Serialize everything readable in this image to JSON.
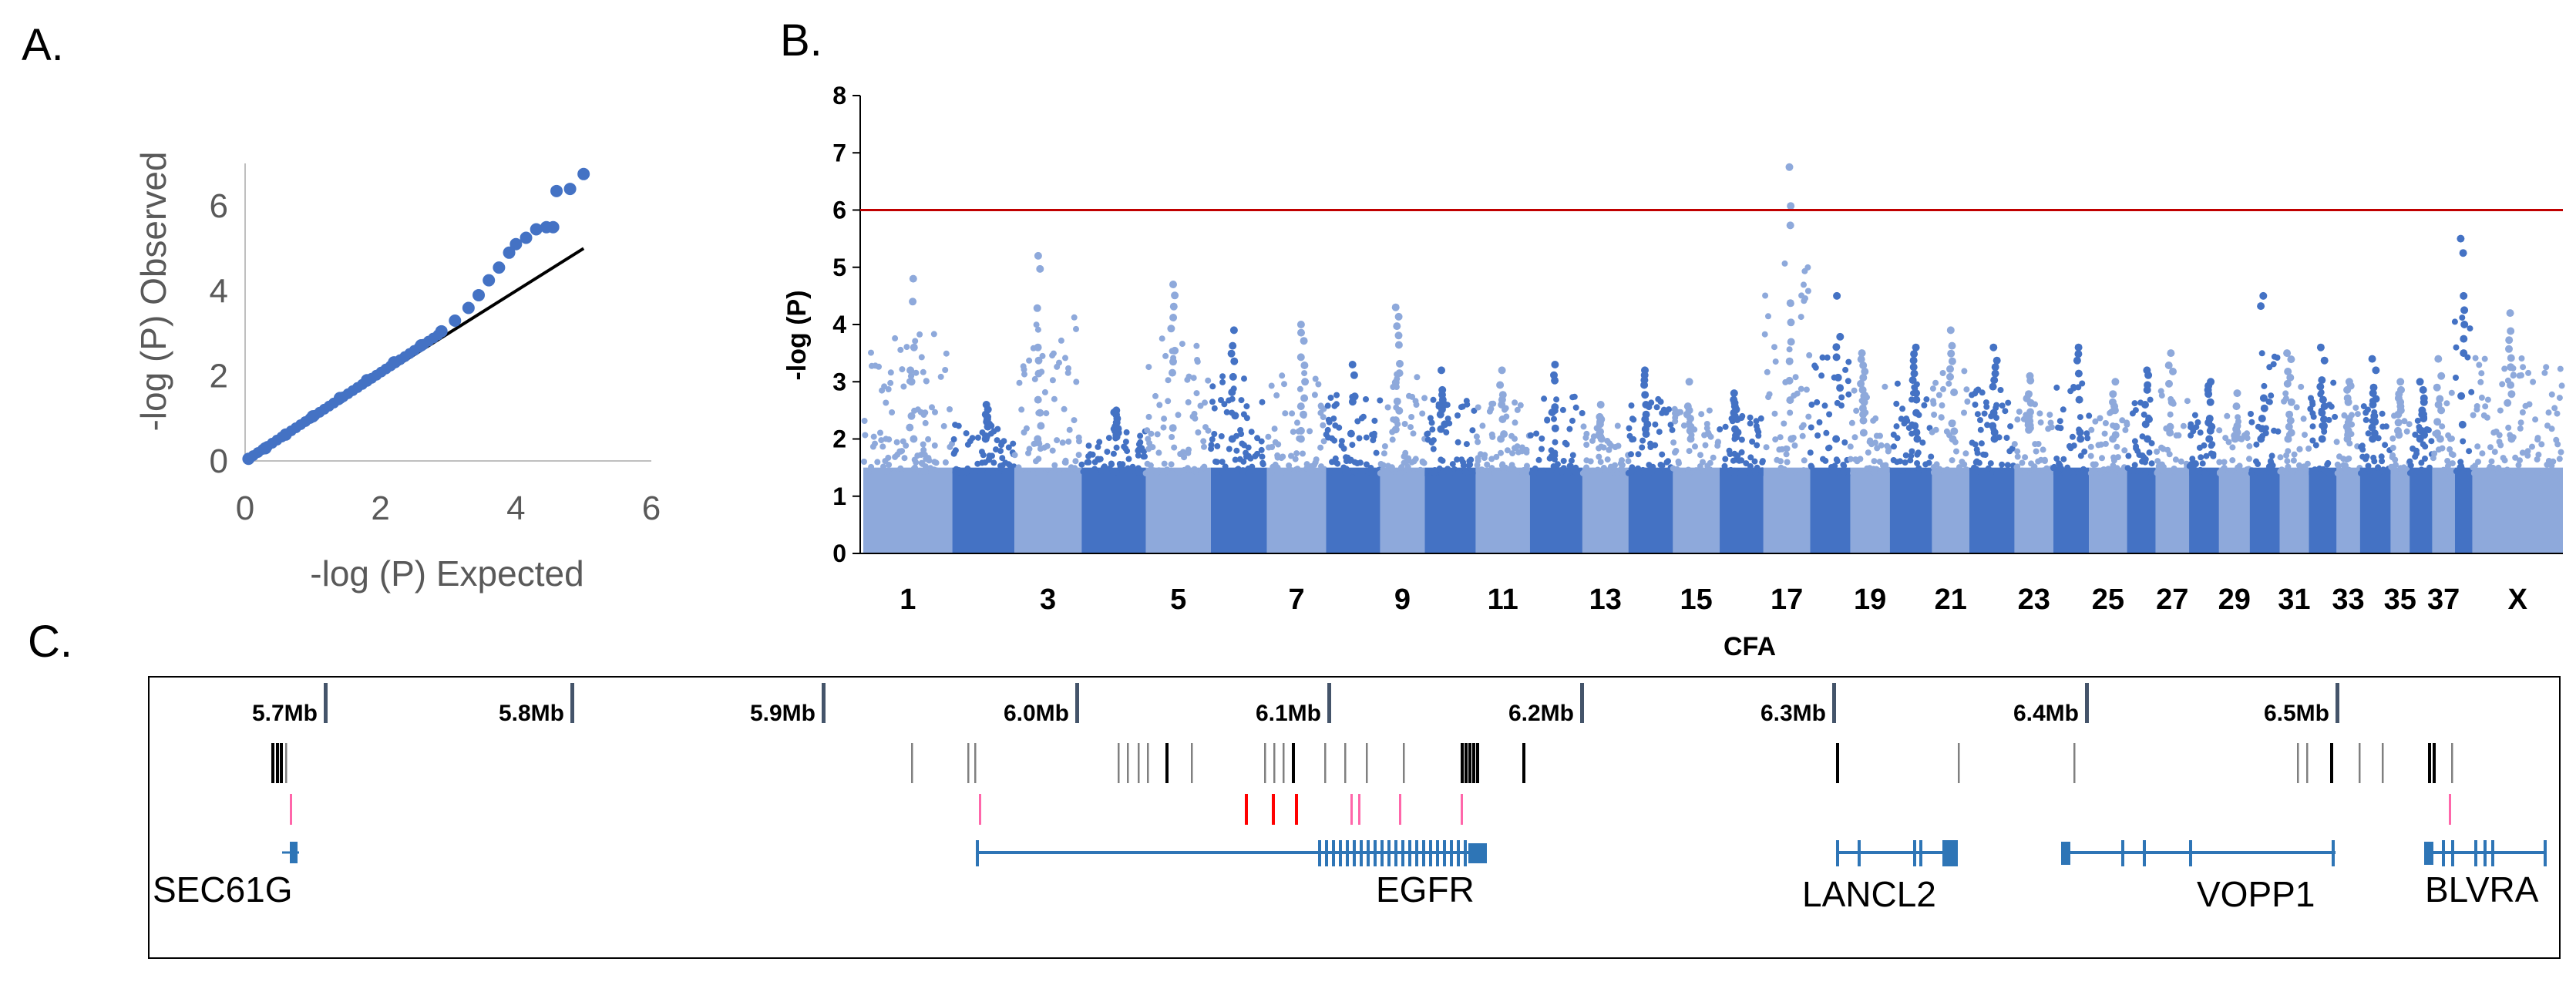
{
  "panel_labels": {
    "a": "A.",
    "b": "B.",
    "c": "C."
  },
  "colors": {
    "qq_point": "#4472C4",
    "qq_line": "#000000",
    "chr_light": "#8EA9DB",
    "chr_dark": "#4472C4",
    "threshold": "#C00000",
    "gene": "#2E75B6",
    "snp_black": "#000000",
    "snp_gray": "#808080",
    "snp_pink": "#FF66AA",
    "snp_red": "#FF0000"
  },
  "chart_data": [
    {
      "id": "qq",
      "type": "scatter",
      "title": "",
      "xlabel": "-log (P) Expected",
      "ylabel": "-log (P) Observed",
      "xlim": [
        0,
        6
      ],
      "ylim": [
        0,
        7
      ],
      "xticks": [
        "0",
        "2",
        "4",
        "6"
      ],
      "yticks": [
        "0",
        "2",
        "4",
        "6"
      ],
      "reference_line": [
        [
          0,
          0
        ],
        [
          5,
          5
        ]
      ],
      "points": [
        [
          0.05,
          0.05
        ],
        [
          0.3,
          0.3
        ],
        [
          0.6,
          0.62
        ],
        [
          1.0,
          1.05
        ],
        [
          1.4,
          1.48
        ],
        [
          1.8,
          1.9
        ],
        [
          2.2,
          2.32
        ],
        [
          2.6,
          2.72
        ],
        [
          2.9,
          3.05
        ],
        [
          3.1,
          3.3
        ],
        [
          3.3,
          3.6
        ],
        [
          3.45,
          3.9
        ],
        [
          3.6,
          4.25
        ],
        [
          3.75,
          4.55
        ],
        [
          3.9,
          4.9
        ],
        [
          4.0,
          5.1
        ],
        [
          4.15,
          5.25
        ],
        [
          4.3,
          5.45
        ],
        [
          4.45,
          5.5
        ],
        [
          4.55,
          5.5
        ],
        [
          4.6,
          6.35
        ],
        [
          4.8,
          6.4
        ],
        [
          5.0,
          6.75
        ]
      ]
    },
    {
      "id": "manhattan",
      "type": "scatter",
      "title": "",
      "xlabel": "CFA",
      "ylabel": "-log (P)",
      "ylim": [
        0,
        8
      ],
      "yticks": [
        "0",
        "1",
        "2",
        "3",
        "4",
        "5",
        "6",
        "7",
        "8"
      ],
      "threshold": 6.0,
      "chromosomes": [
        "1",
        "2",
        "3",
        "4",
        "5",
        "6",
        "7",
        "8",
        "9",
        "10",
        "11",
        "12",
        "13",
        "14",
        "15",
        "16",
        "17",
        "18",
        "19",
        "20",
        "21",
        "22",
        "23",
        "24",
        "25",
        "26",
        "27",
        "28",
        "29",
        "30",
        "31",
        "32",
        "33",
        "34",
        "35",
        "36",
        "37",
        "38",
        "X"
      ],
      "xtick_labels": [
        "1",
        "3",
        "5",
        "7",
        "9",
        "11",
        "13",
        "15",
        "17",
        "19",
        "21",
        "23",
        "25",
        "27",
        "29",
        "31",
        "33",
        "35",
        "37",
        "X"
      ],
      "chr_lengths": [
        122,
        85,
        92,
        88,
        89,
        77,
        81,
        74,
        61,
        70,
        74,
        72,
        63,
        61,
        64,
        60,
        64,
        55,
        54,
        58,
        51,
        62,
        53,
        49,
        52,
        39,
        46,
        41,
        42,
        41,
        40,
        38,
        32,
        42,
        26,
        31,
        31,
        24,
        124
      ],
      "chr_max": [
        4.8,
        2.6,
        5.2,
        2.5,
        4.7,
        3.9,
        4.0,
        3.3,
        4.3,
        3.2,
        3.2,
        3.3,
        2.6,
        3.2,
        3.0,
        2.8,
        6.75,
        4.5,
        3.5,
        3.6,
        3.9,
        3.6,
        3.1,
        3.6,
        3.0,
        3.2,
        3.5,
        3.0,
        2.8,
        4.5,
        3.5,
        3.6,
        3.0,
        3.4,
        3.0,
        3.0,
        3.4,
        5.5,
        4.2
      ]
    },
    {
      "id": "gene_track",
      "type": "track",
      "position_labels": [
        "5.7Mb",
        "5.8Mb",
        "5.9Mb",
        "6.0Mb",
        "6.1Mb",
        "6.2Mb",
        "6.3Mb",
        "6.4Mb",
        "6.5Mb"
      ],
      "genes": [
        "SEC61G",
        "EGFR",
        "LANCL2",
        "VOPP1",
        "BLVRA"
      ]
    }
  ]
}
